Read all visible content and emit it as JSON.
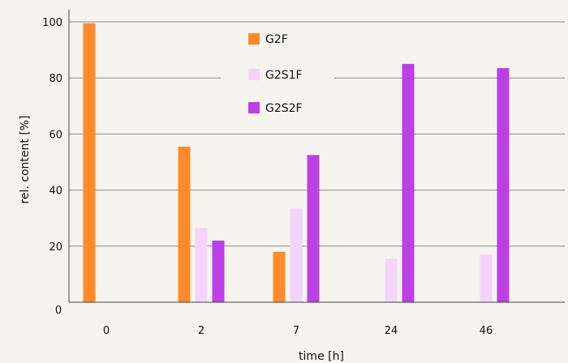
{
  "chart_data": {
    "type": "bar",
    "title": "",
    "xlabel": "time [h]",
    "ylabel": "rel. content [%]",
    "ylim": [
      0,
      100
    ],
    "yticks": [
      0,
      20,
      40,
      60,
      80,
      100
    ],
    "grid": "horizontal",
    "legend_position": "top-center",
    "categories": [
      "0",
      "2",
      "7",
      "24",
      "46"
    ],
    "series": [
      {
        "name": "G2F",
        "color": "#ff8a2a",
        "values": [
          99.5,
          55.5,
          18,
          null,
          null
        ]
      },
      {
        "name": "G2S1F",
        "color": "#f4d4fb",
        "values": [
          null,
          26.5,
          33.5,
          15.5,
          17
        ]
      },
      {
        "name": "G2S2F",
        "color": "#bd3fe6",
        "values": [
          null,
          22,
          52.5,
          85,
          83.5
        ]
      }
    ]
  }
}
